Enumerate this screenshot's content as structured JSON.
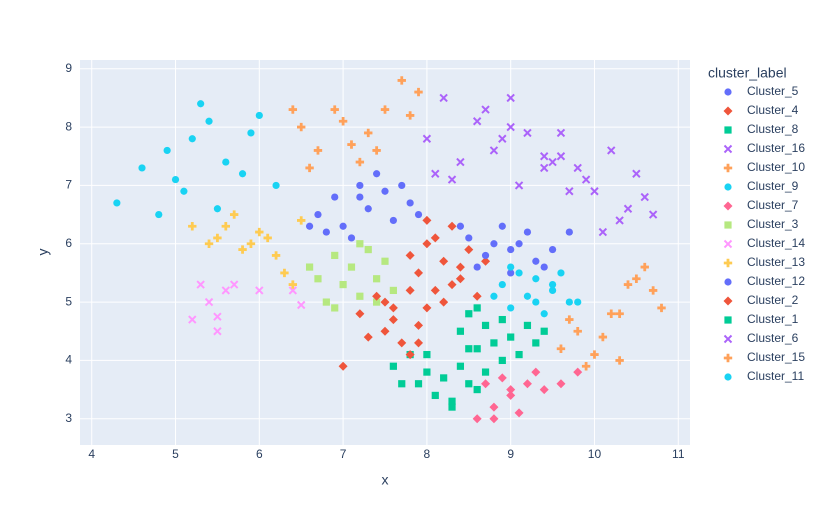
{
  "chart_data": {
    "type": "scatter",
    "x_label": "x",
    "y_label": "y",
    "legend_title": "cluster_label",
    "xlim": [
      3.86,
      11.14
    ],
    "ylim": [
      2.55,
      9.15
    ],
    "xticks": [
      4,
      5,
      6,
      7,
      8,
      9,
      10,
      11
    ],
    "yticks": [
      3,
      4,
      5,
      6,
      7,
      8,
      9
    ],
    "grid": true,
    "legend": "right",
    "series": [
      {
        "name": "Cluster_5",
        "color": "#636efa",
        "symbol": "circle",
        "x": [
          6.7,
          6.9,
          7.0,
          7.2,
          7.3,
          7.5,
          7.6,
          7.8,
          7.1,
          6.8,
          7.4,
          7.9,
          7.2,
          6.6,
          7.7
        ],
        "y": [
          6.5,
          6.8,
          6.3,
          7.0,
          6.6,
          6.9,
          6.4,
          6.7,
          6.1,
          6.2,
          7.2,
          6.5,
          6.8,
          6.3,
          7.0
        ]
      },
      {
        "name": "Cluster_4",
        "color": "#EF553B",
        "symbol": "diamond",
        "x": [
          7.9,
          8.0,
          8.1,
          8.2,
          8.3,
          8.4,
          8.5,
          8.6,
          8.0,
          8.2,
          8.4,
          7.8,
          8.3,
          8.7,
          8.1
        ],
        "y": [
          5.5,
          6.0,
          5.2,
          5.7,
          6.3,
          5.4,
          5.9,
          5.1,
          6.4,
          5.0,
          5.6,
          5.8,
          5.3,
          5.7,
          6.1
        ]
      },
      {
        "name": "Cluster_8",
        "color": "#00cc96",
        "symbol": "square",
        "x": [
          7.6,
          7.8,
          7.9,
          8.0,
          8.1,
          8.2,
          8.3,
          8.4,
          8.5,
          8.6,
          8.0,
          8.3,
          7.7,
          8.7
        ],
        "y": [
          3.9,
          4.1,
          3.6,
          3.8,
          3.4,
          3.7,
          3.3,
          3.9,
          3.6,
          3.5,
          4.1,
          3.2,
          3.6,
          3.8
        ]
      },
      {
        "name": "Cluster_16",
        "color": "#ab63fa",
        "symbol": "x",
        "x": [
          8.0,
          8.2,
          8.4,
          8.6,
          8.8,
          9.0,
          9.2,
          9.4,
          9.6,
          8.3,
          8.7,
          9.1,
          8.1,
          8.9,
          9.0
        ],
        "y": [
          7.8,
          8.5,
          7.4,
          8.1,
          7.6,
          8.5,
          7.9,
          7.3,
          7.5,
          7.1,
          8.3,
          7.0,
          7.2,
          7.8,
          8.0
        ]
      },
      {
        "name": "Cluster_10",
        "color": "#FFA15A",
        "symbol": "cross",
        "x": [
          6.5,
          6.7,
          6.9,
          7.1,
          7.3,
          7.5,
          7.7,
          7.9,
          6.6,
          7.0,
          7.4,
          7.8,
          7.2,
          6.4
        ],
        "y": [
          8.0,
          7.6,
          8.3,
          7.7,
          7.9,
          8.3,
          8.8,
          8.6,
          7.3,
          8.1,
          7.6,
          8.2,
          7.4,
          8.3
        ]
      },
      {
        "name": "Cluster_9",
        "color": "#19d3f3",
        "symbol": "circle",
        "x": [
          4.3,
          4.6,
          4.8,
          5.0,
          5.2,
          5.4,
          5.6,
          5.8,
          6.0,
          6.2,
          5.5,
          5.1,
          4.9,
          5.9,
          5.3
        ],
        "y": [
          6.7,
          7.3,
          6.5,
          7.1,
          7.8,
          8.1,
          7.4,
          7.2,
          8.2,
          7.0,
          6.6,
          6.9,
          7.6,
          7.9,
          8.4
        ]
      },
      {
        "name": "Cluster_7",
        "color": "#FF6692",
        "symbol": "diamond",
        "x": [
          8.6,
          8.7,
          8.8,
          8.9,
          9.0,
          9.1,
          9.2,
          9.3,
          9.4,
          9.6,
          9.8,
          9.0,
          8.8
        ],
        "y": [
          3.0,
          3.6,
          3.2,
          3.7,
          3.4,
          3.1,
          3.6,
          3.8,
          3.5,
          3.6,
          3.8,
          3.5,
          3.0
        ]
      },
      {
        "name": "Cluster_3",
        "color": "#B6E880",
        "symbol": "square",
        "x": [
          6.7,
          6.8,
          6.9,
          7.0,
          7.1,
          7.2,
          7.3,
          7.4,
          7.5,
          7.6,
          6.9,
          7.2,
          6.6,
          7.4
        ],
        "y": [
          5.4,
          5.0,
          5.8,
          5.3,
          5.6,
          5.1,
          5.9,
          5.4,
          5.7,
          5.2,
          4.9,
          6.0,
          5.6,
          5.0
        ]
      },
      {
        "name": "Cluster_14",
        "color": "#FF97FF",
        "symbol": "x",
        "x": [
          5.2,
          5.3,
          5.4,
          5.5,
          5.6,
          5.7,
          6.0,
          6.4,
          6.5,
          5.5
        ],
        "y": [
          4.7,
          5.3,
          5.0,
          4.5,
          5.2,
          5.3,
          5.2,
          5.2,
          4.95,
          4.75
        ]
      },
      {
        "name": "Cluster_13",
        "color": "#FECB52",
        "symbol": "cross",
        "x": [
          5.2,
          5.4,
          5.6,
          5.7,
          5.9,
          6.0,
          6.2,
          6.3,
          6.4,
          6.5,
          5.8,
          6.1,
          5.5
        ],
        "y": [
          6.3,
          6.0,
          6.3,
          6.5,
          6.0,
          6.2,
          5.8,
          5.5,
          5.3,
          6.4,
          5.9,
          6.1,
          6.1
        ]
      },
      {
        "name": "Cluster_12",
        "color": "#636efa",
        "symbol": "circle",
        "x": [
          8.5,
          8.7,
          8.9,
          9.0,
          9.1,
          9.3,
          9.5,
          9.7,
          8.6,
          9.2,
          8.8,
          9.4,
          9.0,
          8.4
        ],
        "y": [
          6.1,
          5.8,
          6.3,
          5.9,
          6.0,
          5.7,
          5.9,
          6.2,
          5.6,
          6.2,
          6.0,
          5.6,
          5.5,
          6.3
        ]
      },
      {
        "name": "Cluster_2",
        "color": "#EF553B",
        "symbol": "diamond",
        "x": [
          7.2,
          7.4,
          7.5,
          7.6,
          7.7,
          7.8,
          7.9,
          8.0,
          7.3,
          7.6,
          7.8,
          7.5,
          7.0,
          7.9
        ],
        "y": [
          4.8,
          5.1,
          4.5,
          4.9,
          4.3,
          5.2,
          4.6,
          4.9,
          4.4,
          4.7,
          4.1,
          5.0,
          3.9,
          4.3
        ]
      },
      {
        "name": "Cluster_1",
        "color": "#00cc96",
        "symbol": "square",
        "x": [
          8.4,
          8.5,
          8.6,
          8.7,
          8.8,
          8.9,
          9.0,
          9.1,
          9.2,
          9.3,
          8.6,
          8.9,
          9.4,
          8.5
        ],
        "y": [
          4.5,
          4.8,
          4.2,
          4.6,
          4.3,
          4.7,
          4.4,
          4.1,
          4.6,
          4.3,
          4.9,
          4.0,
          4.5,
          4.2
        ]
      },
      {
        "name": "Cluster_6",
        "color": "#ab63fa",
        "symbol": "x",
        "x": [
          9.4,
          9.6,
          9.8,
          10.0,
          10.2,
          10.4,
          10.6,
          9.9,
          10.1,
          10.5,
          9.7,
          10.3,
          10.7,
          9.5
        ],
        "y": [
          7.5,
          7.9,
          7.3,
          6.9,
          7.6,
          6.6,
          6.8,
          7.1,
          6.2,
          7.2,
          6.9,
          6.4,
          6.5,
          7.4
        ]
      },
      {
        "name": "Cluster_15",
        "color": "#FFA15A",
        "symbol": "cross",
        "x": [
          9.6,
          9.8,
          10.0,
          10.2,
          10.4,
          10.6,
          10.8,
          10.1,
          10.3,
          10.5,
          9.9,
          10.7,
          9.7,
          10.3
        ],
        "y": [
          4.2,
          4.5,
          4.1,
          4.8,
          5.3,
          5.6,
          4.9,
          4.4,
          4.8,
          5.4,
          3.9,
          5.2,
          4.7,
          4.0
        ]
      },
      {
        "name": "Cluster_11",
        "color": "#19d3f3",
        "symbol": "circle",
        "x": [
          8.9,
          9.0,
          9.1,
          9.2,
          9.3,
          9.4,
          9.5,
          9.6,
          9.7,
          9.0,
          9.3,
          9.5,
          9.8,
          8.8
        ],
        "y": [
          5.3,
          4.9,
          5.5,
          5.1,
          5.4,
          4.8,
          5.2,
          5.5,
          5.0,
          5.6,
          5.0,
          5.3,
          5.0,
          5.1
        ]
      }
    ]
  }
}
